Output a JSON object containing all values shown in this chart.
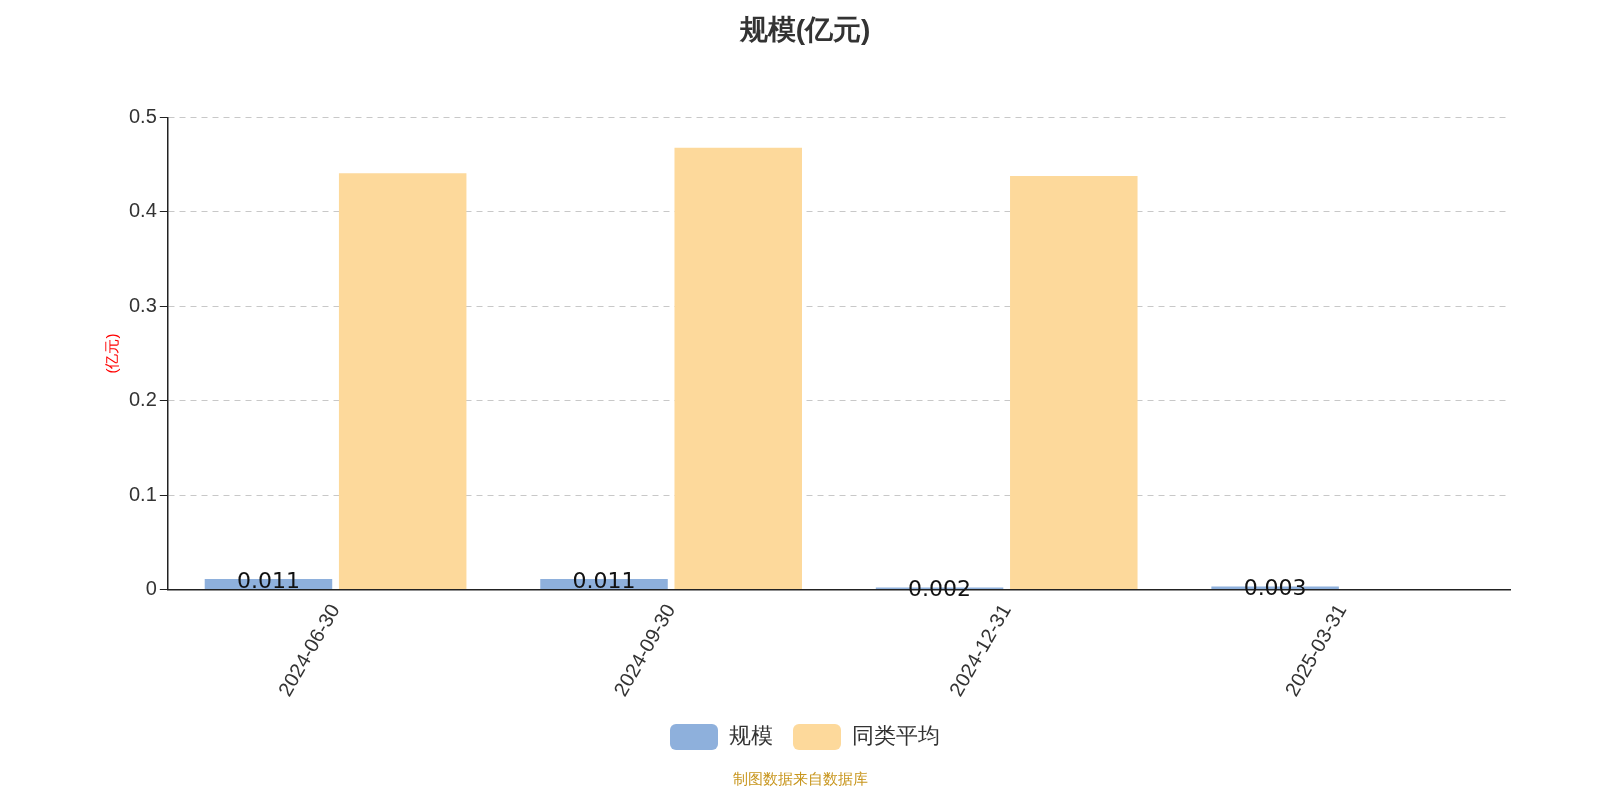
{
  "chart_data": {
    "type": "bar",
    "title": "规模(亿元)",
    "ylabel": "(亿元)",
    "categories": [
      "2024-06-30",
      "2024-09-30",
      "2024-12-31",
      "2025-03-31"
    ],
    "series": [
      {
        "name": "规模",
        "color": "#8eb0dc",
        "values": [
          0.011,
          0.011,
          0.002,
          0.003
        ],
        "value_labels": [
          "0.011",
          "0.011",
          "0.002",
          "0.003"
        ]
      },
      {
        "name": "同类平均",
        "color": "#fdd99b",
        "values": [
          0.441,
          0.468,
          0.438,
          null
        ]
      }
    ],
    "ylim": [
      0,
      0.5
    ],
    "yticks": [
      0,
      0.1,
      0.2,
      0.3,
      0.4,
      0.5
    ],
    "grid": "y",
    "legend": "bottom",
    "annotations": [
      "制图数据来自数据库"
    ]
  }
}
